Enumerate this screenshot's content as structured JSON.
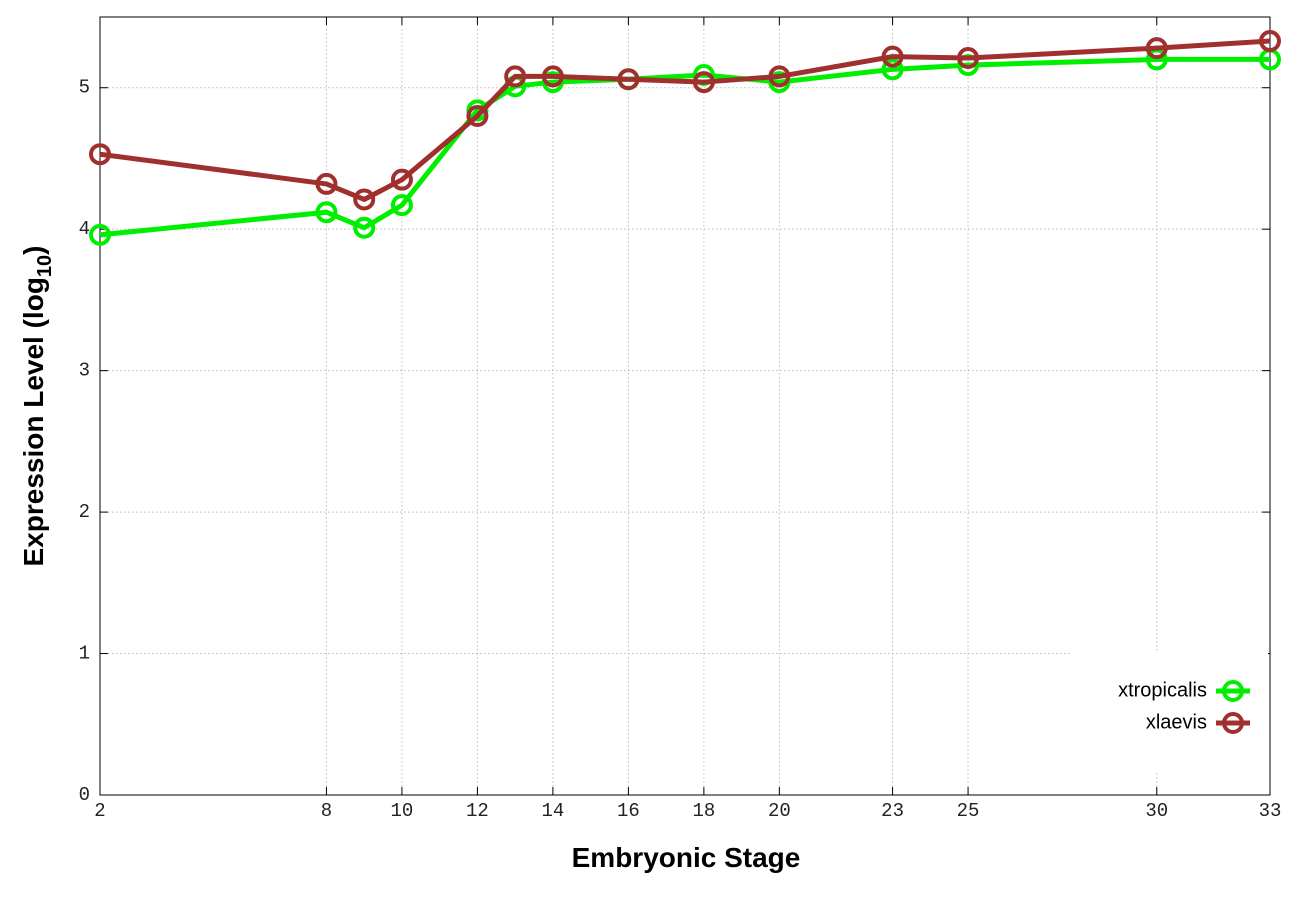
{
  "chart_data": {
    "type": "line",
    "x_label": "Embryonic Stage",
    "y_label": {
      "text": "Expression Level (log",
      "subscript": "10",
      "suffix": ")"
    },
    "x": [
      2,
      8,
      9,
      10,
      12,
      13,
      14,
      16,
      18,
      20,
      23,
      25,
      30,
      33
    ],
    "series": [
      {
        "name": "xtropicalis",
        "color": "#00ee00",
        "values": [
          3.96,
          4.12,
          4.01,
          4.17,
          4.84,
          5.01,
          5.04,
          5.06,
          5.09,
          5.04,
          5.13,
          5.16,
          5.2,
          5.2
        ]
      },
      {
        "name": "xlaevis",
        "color": "#a0302e",
        "values": [
          4.53,
          4.32,
          4.21,
          4.35,
          4.8,
          5.08,
          5.08,
          5.06,
          5.04,
          5.08,
          5.22,
          5.21,
          5.28,
          5.33
        ]
      }
    ],
    "xlim": [
      2,
      33
    ],
    "xticks": [
      2,
      8,
      10,
      12,
      14,
      16,
      18,
      20,
      23,
      25,
      30,
      33
    ],
    "ylim": [
      0,
      5.5
    ],
    "yticks": [
      0,
      1,
      2,
      3,
      4,
      5
    ],
    "grid": true,
    "legend": "bottom-right"
  }
}
